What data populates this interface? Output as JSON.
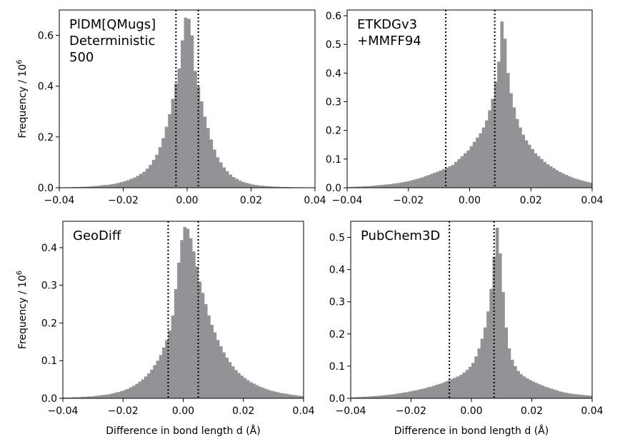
{
  "bar_color": "#939396",
  "chart_data": [
    {
      "type": "bar",
      "histogram": true,
      "annotation_lines": [
        "PlDM[QMugs]",
        "Deterministic",
        "500"
      ],
      "ylabel": "Frequency / 10",
      "ylabel_sup": "6",
      "xlabel": "",
      "xlim": [
        -0.04,
        0.04
      ],
      "ylim": [
        0,
        0.7
      ],
      "xticks": [
        -0.04,
        -0.02,
        0.0,
        0.02,
        0.04
      ],
      "xtick_labels": [
        "−0.04",
        "−0.02",
        "0.00",
        "0.02",
        "0.04"
      ],
      "yticks": [
        0.0,
        0.2,
        0.4,
        0.6
      ],
      "ytick_labels": [
        "0.0",
        "0.2",
        "0.4",
        "0.6"
      ],
      "vlines": [
        -0.0035,
        0.0035
      ],
      "bin_start": -0.04,
      "bin_width": 0.001,
      "values": [
        0.001,
        0.001,
        0.002,
        0.002,
        0.003,
        0.003,
        0.003,
        0.004,
        0.004,
        0.005,
        0.006,
        0.007,
        0.008,
        0.01,
        0.011,
        0.012,
        0.014,
        0.016,
        0.019,
        0.022,
        0.026,
        0.03,
        0.035,
        0.04,
        0.047,
        0.055,
        0.063,
        0.075,
        0.09,
        0.11,
        0.13,
        0.16,
        0.195,
        0.24,
        0.29,
        0.35,
        0.41,
        0.47,
        0.58,
        0.67,
        0.665,
        0.6,
        0.46,
        0.4,
        0.34,
        0.28,
        0.235,
        0.19,
        0.15,
        0.12,
        0.1,
        0.08,
        0.065,
        0.052,
        0.042,
        0.035,
        0.028,
        0.023,
        0.019,
        0.016,
        0.013,
        0.011,
        0.009,
        0.008,
        0.007,
        0.006,
        0.005,
        0.004,
        0.004,
        0.003,
        0.003,
        0.003,
        0.002,
        0.002,
        0.002,
        0.002,
        0.001,
        0.001,
        0.001,
        0.001
      ]
    },
    {
      "type": "bar",
      "histogram": true,
      "annotation_lines": [
        "ETKDGv3",
        "+MMFF94"
      ],
      "ylabel": "",
      "ylabel_sup": "",
      "xlabel": "",
      "xlim": [
        -0.04,
        0.04
      ],
      "ylim": [
        0,
        0.62
      ],
      "xticks": [
        -0.04,
        -0.02,
        0.0,
        0.02,
        0.04
      ],
      "xtick_labels": [
        "−0.04",
        "−0.02",
        "0.00",
        "0.02",
        "0.04"
      ],
      "yticks": [
        0.0,
        0.1,
        0.2,
        0.3,
        0.4,
        0.5,
        0.6
      ],
      "ytick_labels": [
        "0.0",
        "0.1",
        "0.2",
        "0.3",
        "0.4",
        "0.5",
        "0.6"
      ],
      "vlines": [
        -0.0078,
        0.0082
      ],
      "bin_start": -0.04,
      "bin_width": 0.001,
      "values": [
        0.002,
        0.003,
        0.003,
        0.004,
        0.004,
        0.005,
        0.005,
        0.006,
        0.007,
        0.008,
        0.009,
        0.01,
        0.011,
        0.012,
        0.013,
        0.015,
        0.016,
        0.018,
        0.02,
        0.022,
        0.024,
        0.027,
        0.03,
        0.033,
        0.036,
        0.04,
        0.044,
        0.048,
        0.052,
        0.056,
        0.06,
        0.065,
        0.07,
        0.075,
        0.08,
        0.09,
        0.1,
        0.11,
        0.12,
        0.13,
        0.145,
        0.16,
        0.175,
        0.19,
        0.21,
        0.235,
        0.27,
        0.31,
        0.37,
        0.44,
        0.58,
        0.52,
        0.4,
        0.33,
        0.28,
        0.24,
        0.21,
        0.185,
        0.165,
        0.15,
        0.135,
        0.12,
        0.11,
        0.1,
        0.09,
        0.082,
        0.075,
        0.068,
        0.061,
        0.055,
        0.05,
        0.045,
        0.04,
        0.036,
        0.032,
        0.029,
        0.026,
        0.023,
        0.02,
        0.018
      ]
    },
    {
      "type": "bar",
      "histogram": true,
      "annotation_lines": [
        "GeoDiff"
      ],
      "ylabel": "Frequency / 10",
      "ylabel_sup": "6",
      "xlabel": "Difference in bond length d (Å)",
      "xlim": [
        -0.04,
        0.04
      ],
      "ylim": [
        0,
        0.47
      ],
      "xticks": [
        -0.04,
        -0.02,
        0.0,
        0.02,
        0.04
      ],
      "xtick_labels": [
        "−0.04",
        "−0.02",
        "0.00",
        "0.02",
        "0.04"
      ],
      "yticks": [
        0.0,
        0.1,
        0.2,
        0.3,
        0.4
      ],
      "ytick_labels": [
        "0.0",
        "0.1",
        "0.2",
        "0.3",
        "0.4"
      ],
      "vlines": [
        -0.005,
        0.005
      ],
      "bin_start": -0.04,
      "bin_width": 0.001,
      "values": [
        0.002,
        0.002,
        0.002,
        0.003,
        0.003,
        0.003,
        0.004,
        0.004,
        0.005,
        0.005,
        0.006,
        0.007,
        0.008,
        0.009,
        0.01,
        0.011,
        0.013,
        0.015,
        0.017,
        0.019,
        0.022,
        0.025,
        0.029,
        0.033,
        0.038,
        0.044,
        0.05,
        0.058,
        0.066,
        0.076,
        0.088,
        0.1,
        0.115,
        0.135,
        0.155,
        0.18,
        0.22,
        0.29,
        0.36,
        0.42,
        0.455,
        0.45,
        0.425,
        0.39,
        0.35,
        0.31,
        0.28,
        0.25,
        0.22,
        0.195,
        0.175,
        0.155,
        0.138,
        0.122,
        0.108,
        0.096,
        0.085,
        0.075,
        0.067,
        0.06,
        0.054,
        0.048,
        0.043,
        0.039,
        0.035,
        0.031,
        0.028,
        0.025,
        0.022,
        0.02,
        0.018,
        0.016,
        0.014,
        0.013,
        0.012,
        0.01,
        0.009,
        0.008,
        0.007,
        0.006
      ]
    },
    {
      "type": "bar",
      "histogram": true,
      "annotation_lines": [
        "PubChem3D"
      ],
      "ylabel": "",
      "ylabel_sup": "",
      "xlabel": "Difference in bond length d (Å)",
      "xlim": [
        -0.04,
        0.04
      ],
      "ylim": [
        0,
        0.55
      ],
      "xticks": [
        -0.04,
        -0.02,
        0.0,
        0.02,
        0.04
      ],
      "xtick_labels": [
        "−0.04",
        "−0.02",
        "0.00",
        "0.02",
        "0.04"
      ],
      "yticks": [
        0.0,
        0.1,
        0.2,
        0.3,
        0.4,
        0.5
      ],
      "ytick_labels": [
        "0.0",
        "0.1",
        "0.2",
        "0.3",
        "0.4",
        "0.5"
      ],
      "vlines": [
        -0.0073,
        0.0075
      ],
      "bin_start": -0.04,
      "bin_width": 0.001,
      "values": [
        0.003,
        0.003,
        0.004,
        0.004,
        0.005,
        0.005,
        0.006,
        0.007,
        0.007,
        0.008,
        0.009,
        0.01,
        0.011,
        0.012,
        0.013,
        0.015,
        0.016,
        0.018,
        0.019,
        0.021,
        0.023,
        0.025,
        0.027,
        0.029,
        0.031,
        0.034,
        0.036,
        0.039,
        0.042,
        0.045,
        0.048,
        0.052,
        0.056,
        0.06,
        0.064,
        0.068,
        0.073,
        0.08,
        0.088,
        0.098,
        0.11,
        0.13,
        0.155,
        0.185,
        0.22,
        0.27,
        0.34,
        0.44,
        0.53,
        0.45,
        0.33,
        0.22,
        0.155,
        0.12,
        0.1,
        0.085,
        0.075,
        0.068,
        0.062,
        0.057,
        0.052,
        0.048,
        0.044,
        0.04,
        0.036,
        0.033,
        0.03,
        0.027,
        0.024,
        0.021,
        0.019,
        0.017,
        0.015,
        0.014,
        0.013,
        0.012,
        0.011,
        0.01,
        0.009,
        0.008
      ]
    }
  ]
}
